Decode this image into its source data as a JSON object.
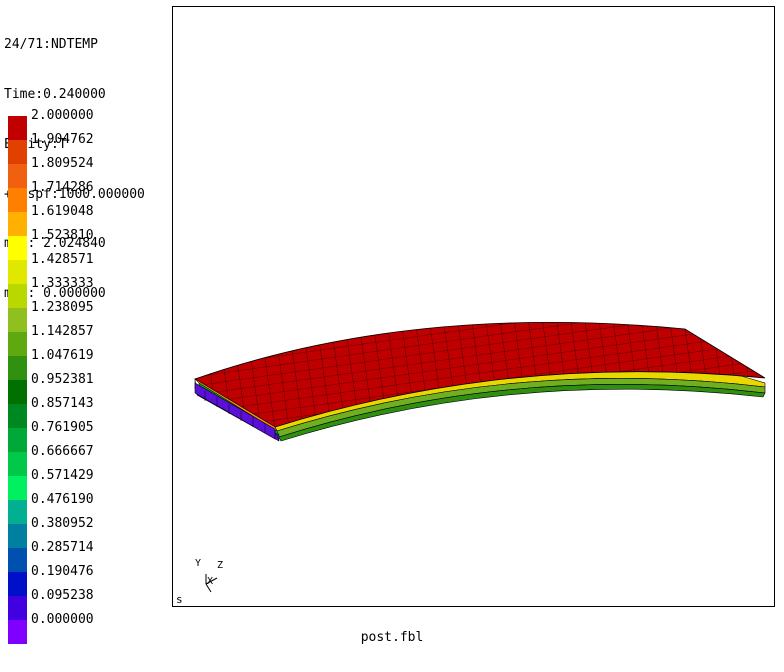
{
  "header": {
    "lines": [
      "24/71:NDTEMP",
      "Time:0.240000",
      "Entity:T",
      "+Dispf:1000.000000",
      "max: 2.024840",
      "min: 0.000000"
    ]
  },
  "legend": {
    "items": [
      {
        "value": "2.000000",
        "color": "#c00000"
      },
      {
        "value": "1.904762",
        "color": "#e04000"
      },
      {
        "value": "1.809524",
        "color": "#f06010"
      },
      {
        "value": "1.714286",
        "color": "#ff8000"
      },
      {
        "value": "1.619048",
        "color": "#ffb000"
      },
      {
        "value": "1.523810",
        "color": "#ffff00"
      },
      {
        "value": "1.428571",
        "color": "#e0e800"
      },
      {
        "value": "1.333333",
        "color": "#b8d800"
      },
      {
        "value": "1.238095",
        "color": "#90c020"
      },
      {
        "value": "1.142857",
        "color": "#60a810"
      },
      {
        "value": "1.047619",
        "color": "#309010"
      },
      {
        "value": "0.952381",
        "color": "#007000"
      },
      {
        "value": "0.857143",
        "color": "#008820"
      },
      {
        "value": "0.761905",
        "color": "#00a838"
      },
      {
        "value": "0.666667",
        "color": "#00c848"
      },
      {
        "value": "0.571429",
        "color": "#00f060"
      },
      {
        "value": "0.476190",
        "color": "#00b090"
      },
      {
        "value": "0.380952",
        "color": "#0080a0"
      },
      {
        "value": "0.285714",
        "color": "#0050b0"
      },
      {
        "value": "0.190476",
        "color": "#0010c8"
      },
      {
        "value": "0.095238",
        "color": "#4000e0"
      },
      {
        "value": "0.000000",
        "color": "#8000ff"
      }
    ]
  },
  "viewport": {
    "label": "s",
    "axes": {
      "y": "Y",
      "z": "Z",
      "x": "X"
    }
  },
  "footer": {
    "filename": "post.fbl"
  }
}
